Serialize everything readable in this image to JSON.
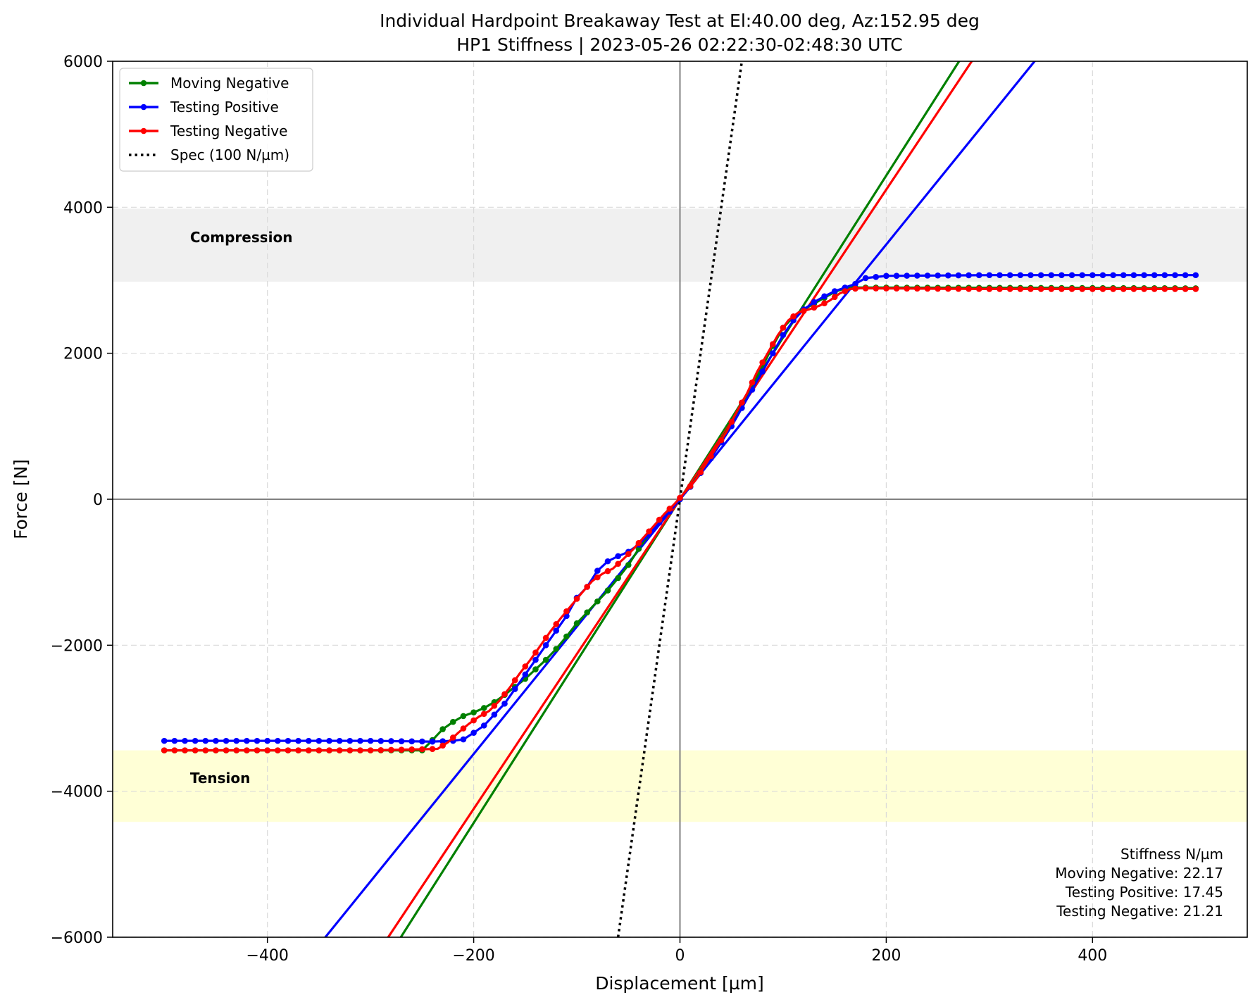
{
  "chart_data": {
    "type": "line",
    "title": "Individual Hardpoint Breakaway Test at El:40.00 deg, Az:152.95 deg",
    "subtitle": "HP1 Stiffness | 2023-05-26 02:22:30-02:48:30 UTC",
    "xlabel": "Displacement [µm]",
    "ylabel": "Force [N]",
    "xlim": [
      -550,
      550
    ],
    "ylim": [
      -6000,
      6000
    ],
    "xticks": [
      -400,
      -200,
      0,
      200,
      400
    ],
    "xtick_labels": [
      "−400",
      "−200",
      "0",
      "200",
      "400"
    ],
    "yticks": [
      -6000,
      -4000,
      -2000,
      0,
      2000,
      4000,
      6000
    ],
    "ytick_labels": [
      "−6000",
      "−4000",
      "−2000",
      "0",
      "2000",
      "4000",
      "6000"
    ],
    "grid": true,
    "legend_position": "top-left",
    "regions": [
      {
        "label": "Compression",
        "y_from": 2980,
        "y_to": 3980,
        "color": "#f0f0f0"
      },
      {
        "label": "Tension",
        "y_from": -4420,
        "y_to": -3440,
        "color": "#ffffd6"
      }
    ],
    "series": [
      {
        "name": "Moving Negative",
        "color": "#008000",
        "measured": {
          "x": [
            -500,
            -250,
            -240,
            -230,
            -220,
            -210,
            -200,
            -190,
            -180,
            -170,
            -160,
            -150,
            -140,
            -130,
            -120,
            -110,
            -100,
            -90,
            -80,
            -70,
            -60,
            -50,
            -40,
            -30,
            -20,
            -10,
            0,
            10,
            20,
            30,
            40,
            50,
            60,
            70,
            80,
            90,
            100,
            110,
            120,
            130,
            140,
            150,
            160,
            170,
            500
          ],
          "y": [
            -3440,
            -3440,
            -3300,
            -3150,
            -3050,
            -2970,
            -2920,
            -2860,
            -2780,
            -2680,
            -2570,
            -2460,
            -2330,
            -2200,
            -2050,
            -1880,
            -1700,
            -1550,
            -1400,
            -1250,
            -1080,
            -900,
            -680,
            -480,
            -300,
            -150,
            0,
            170,
            380,
            580,
            820,
            1050,
            1300,
            1550,
            1820,
            2100,
            2350,
            2500,
            2600,
            2680,
            2760,
            2840,
            2890,
            2900,
            2890
          ]
        },
        "fit": {
          "x": [
            -280,
            280
          ],
          "slope": 22.17
        }
      },
      {
        "name": "Testing Positive",
        "color": "#0000ff",
        "measured": {
          "x": [
            -500,
            -300,
            -240,
            -220,
            -210,
            -200,
            -190,
            -180,
            -170,
            -160,
            -150,
            -140,
            -130,
            -120,
            -110,
            -100,
            -90,
            -80,
            -70,
            -60,
            -50,
            -40,
            -30,
            -20,
            -10,
            0,
            10,
            20,
            30,
            40,
            50,
            60,
            70,
            80,
            90,
            100,
            110,
            120,
            130,
            140,
            150,
            160,
            170,
            180,
            200,
            300,
            400,
            500
          ],
          "y": [
            -3310,
            -3310,
            -3320,
            -3310,
            -3290,
            -3200,
            -3100,
            -2950,
            -2800,
            -2600,
            -2400,
            -2200,
            -2000,
            -1800,
            -1600,
            -1350,
            -1200,
            -980,
            -850,
            -780,
            -720,
            -620,
            -480,
            -320,
            -170,
            0,
            170,
            360,
            560,
            780,
            1000,
            1250,
            1500,
            1750,
            2000,
            2250,
            2450,
            2600,
            2700,
            2780,
            2850,
            2900,
            2950,
            3030,
            3060,
            3070,
            3070,
            3070
          ]
        },
        "fit": {
          "x": [
            -350,
            350
          ],
          "slope": 17.45
        }
      },
      {
        "name": "Testing Negative",
        "color": "#ff0000",
        "measured": {
          "x": [
            -500,
            -300,
            -235,
            -225,
            -215,
            -205,
            -195,
            -185,
            -175,
            -165,
            -155,
            -145,
            -135,
            -125,
            -115,
            -105,
            -95,
            -85,
            -75,
            -65,
            -55,
            -45,
            -35,
            -25,
            -15,
            -5,
            5,
            15,
            25,
            35,
            45,
            55,
            65,
            75,
            85,
            95,
            105,
            115,
            125,
            135,
            145,
            155,
            165,
            175,
            300,
            500
          ],
          "y": [
            -3440,
            -3440,
            -3420,
            -3330,
            -3200,
            -3080,
            -2980,
            -2900,
            -2760,
            -2580,
            -2380,
            -2200,
            -2000,
            -1800,
            -1620,
            -1450,
            -1280,
            -1120,
            -1020,
            -950,
            -820,
            -680,
            -520,
            -360,
            -200,
            -60,
            100,
            260,
            480,
            700,
            920,
            1200,
            1450,
            1750,
            2000,
            2250,
            2450,
            2560,
            2600,
            2650,
            2720,
            2820,
            2880,
            2890,
            2880,
            2880
          ]
        },
        "fit": {
          "x": [
            -285,
            285
          ],
          "slope": 21.21
        }
      },
      {
        "name": "Spec (100 N/µm)",
        "color": "#000000",
        "dotted": true,
        "fit": {
          "x": [
            -60,
            60
          ],
          "slope": 100
        }
      }
    ],
    "stiffness_box": {
      "title": "Stiffness N/µm",
      "lines": [
        "Moving Negative: 22.17",
        "Testing Positive: 17.45",
        "Testing Negative: 21.21"
      ]
    }
  }
}
